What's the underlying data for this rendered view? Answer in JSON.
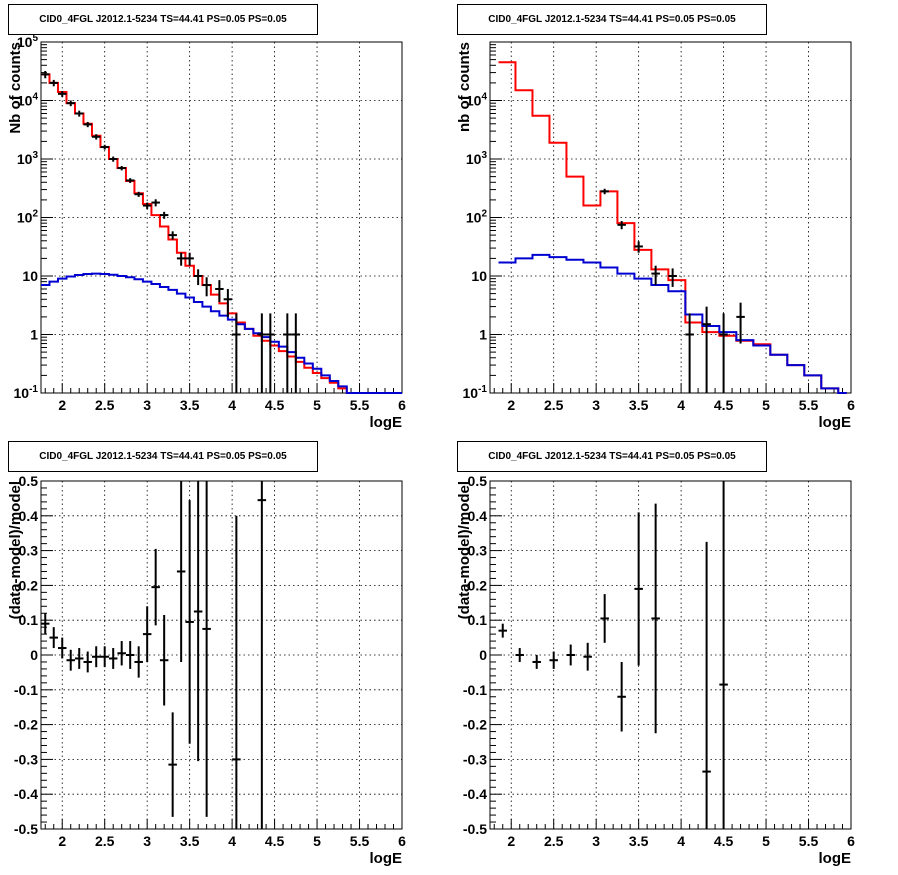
{
  "chart_data": [
    {
      "type": "line",
      "title": "CID0_4FGL J2012.1-5234 TS=44.41 PS=0.05 PS=0.05",
      "xlabel": "logE",
      "ylabel": "Nb of counts",
      "xlim": [
        1.75,
        6.0
      ],
      "ylim": [
        0.1,
        100000
      ],
      "yscale": "log",
      "grid": true,
      "x_ticks": [
        "2",
        "2.5",
        "3",
        "3.5",
        "4",
        "4.5",
        "5",
        "5.5",
        "6"
      ],
      "y_ticks": [
        {
          "base": "10",
          "exp": "-1",
          "value": 0.1
        },
        {
          "base": "1",
          "exp": "",
          "value": 1
        },
        {
          "base": "10",
          "exp": "",
          "value": 10
        },
        {
          "base": "10",
          "exp": "2",
          "value": 100
        },
        {
          "base": "10",
          "exp": "3",
          "value": 1000
        },
        {
          "base": "10",
          "exp": "4",
          "value": 10000
        },
        {
          "base": "10",
          "exp": "5",
          "value": 100000
        }
      ],
      "bin_edges": [
        1.75,
        1.85,
        1.95,
        2.05,
        2.15,
        2.25,
        2.35,
        2.45,
        2.55,
        2.65,
        2.75,
        2.85,
        2.95,
        3.05,
        3.15,
        3.25,
        3.35,
        3.45,
        3.55,
        3.65,
        3.75,
        3.85,
        3.95,
        4.05,
        4.15,
        4.25,
        4.35,
        4.45,
        4.55,
        4.65,
        4.75,
        4.85,
        4.95,
        5.05,
        5.15,
        5.25,
        5.35,
        5.45,
        5.55,
        5.65,
        5.75,
        5.85,
        5.95,
        6.0
      ],
      "series": [
        {
          "name": "",
          "color": "#ff0000",
          "values": [
            28000,
            20000,
            14000,
            9000,
            6000,
            4000,
            2500,
            1600,
            1000,
            700,
            420,
            260,
            170,
            110,
            70,
            42,
            25,
            15,
            10,
            7,
            4.8,
            3.4,
            2.3,
            1.6,
            1.25,
            0.95,
            0.78,
            0.65,
            0.52,
            0.42,
            0.34,
            0.27,
            0.22,
            0.18,
            0.15,
            0.12,
            0.1,
            0.1,
            0.1,
            0.1,
            0.1,
            0.1,
            0.1
          ]
        },
        {
          "name": "",
          "color": "#0000d0",
          "values": [
            7,
            8,
            9,
            9.8,
            10.4,
            10.8,
            11,
            10.8,
            10.5,
            10,
            9.5,
            8.8,
            8,
            7.3,
            6.5,
            5.8,
            5,
            4.3,
            3.6,
            3,
            2.5,
            2.1,
            1.8,
            1.5,
            1.25,
            1.05,
            0.9,
            0.75,
            0.62,
            0.5,
            0.4,
            0.32,
            0.26,
            0.2,
            0.16,
            0.13,
            0.1,
            0.1,
            0.1,
            0.1,
            0.1,
            0.1,
            0.1
          ]
        }
      ],
      "points": [
        {
          "x": 1.8,
          "y": 28000,
          "lo": 24000,
          "hi": 32000
        },
        {
          "x": 1.9,
          "y": 20000,
          "lo": 17500,
          "hi": 22500
        },
        {
          "x": 2.0,
          "y": 13000,
          "lo": 11500,
          "hi": 14500
        },
        {
          "x": 2.1,
          "y": 9000,
          "lo": 8000,
          "hi": 10000
        },
        {
          "x": 2.2,
          "y": 6000,
          "lo": 5300,
          "hi": 6700
        },
        {
          "x": 2.3,
          "y": 3900,
          "lo": 3500,
          "hi": 4300
        },
        {
          "x": 2.4,
          "y": 2400,
          "lo": 2150,
          "hi": 2650
        },
        {
          "x": 2.5,
          "y": 1600,
          "lo": 1450,
          "hi": 1750
        },
        {
          "x": 2.6,
          "y": 1000,
          "lo": 900,
          "hi": 1100
        },
        {
          "x": 2.7,
          "y": 700,
          "lo": 640,
          "hi": 760
        },
        {
          "x": 2.8,
          "y": 430,
          "lo": 390,
          "hi": 470
        },
        {
          "x": 2.9,
          "y": 250,
          "lo": 225,
          "hi": 275
        },
        {
          "x": 3.0,
          "y": 160,
          "lo": 140,
          "hi": 180
        },
        {
          "x": 3.1,
          "y": 180,
          "lo": 155,
          "hi": 205
        },
        {
          "x": 3.2,
          "y": 110,
          "lo": 95,
          "hi": 125
        },
        {
          "x": 3.3,
          "y": 50,
          "lo": 42,
          "hi": 58
        },
        {
          "x": 3.4,
          "y": 20,
          "lo": 15,
          "hi": 25
        },
        {
          "x": 3.5,
          "y": 20,
          "lo": 15,
          "hi": 25
        },
        {
          "x": 3.6,
          "y": 10,
          "lo": 7,
          "hi": 13
        },
        {
          "x": 3.7,
          "y": 7,
          "lo": 4.5,
          "hi": 9.5
        },
        {
          "x": 3.85,
          "y": 6,
          "lo": 3.6,
          "hi": 8.5
        },
        {
          "x": 3.95,
          "y": 4,
          "lo": 2,
          "hi": 6
        },
        {
          "x": 4.05,
          "y": 1,
          "lo": 0.1,
          "hi": 2.3
        },
        {
          "x": 4.35,
          "y": 1,
          "lo": 0.1,
          "hi": 2.3
        },
        {
          "x": 4.45,
          "y": 1,
          "lo": 0.1,
          "hi": 2.3
        },
        {
          "x": 4.65,
          "y": 1,
          "lo": 0.1,
          "hi": 2.3
        },
        {
          "x": 4.75,
          "y": 1,
          "lo": 0.1,
          "hi": 2.3
        }
      ]
    },
    {
      "type": "line",
      "title": "CID0_4FGL J2012.1-5234 TS=44.41 PS=0.05 PS=0.05",
      "xlabel": "logE",
      "ylabel": "nb of counts",
      "xlim": [
        1.75,
        6.0
      ],
      "ylim": [
        0.1,
        100000
      ],
      "yscale": "log",
      "grid": true,
      "x_ticks": [
        "2",
        "2.5",
        "3",
        "3.5",
        "4",
        "4.5",
        "5",
        "5.5",
        "6"
      ],
      "y_ticks": [
        {
          "base": "10",
          "exp": "-1",
          "value": 0.1
        },
        {
          "base": "1",
          "exp": "",
          "value": 1
        },
        {
          "base": "10",
          "exp": "",
          "value": 10
        },
        {
          "base": "10",
          "exp": "2",
          "value": 100
        },
        {
          "base": "10",
          "exp": "3",
          "value": 1000
        },
        {
          "base": "10",
          "exp": "4",
          "value": 10000
        }
      ],
      "bin_edges": [
        1.85,
        2.05,
        2.25,
        2.45,
        2.65,
        2.85,
        3.05,
        3.25,
        3.45,
        3.65,
        3.85,
        4.05,
        4.25,
        4.45,
        4.65,
        4.85,
        5.05,
        5.25,
        5.45,
        5.65,
        5.85,
        5.95
      ],
      "series": [
        {
          "name": "",
          "color": "#ff0000",
          "values": [
            45000,
            15000,
            5500,
            1900,
            500,
            160,
            280,
            80,
            28,
            13,
            8.5,
            1.6,
            1.1,
            0.95,
            0.78,
            0.68,
            0.45,
            0.3,
            0.2,
            0.12,
            0.1
          ]
        },
        {
          "name": "",
          "color": "#0000d0",
          "values": [
            17,
            20,
            23,
            21,
            19,
            17,
            14,
            11,
            9,
            7,
            5.5,
            2.2,
            1.4,
            1.1,
            0.8,
            0.65,
            0.45,
            0.3,
            0.2,
            0.12,
            0.1
          ]
        }
      ],
      "points": [
        {
          "x": 3.1,
          "y": 280,
          "lo": 250,
          "hi": 310
        },
        {
          "x": 3.3,
          "y": 75,
          "lo": 63,
          "hi": 87
        },
        {
          "x": 3.5,
          "y": 32,
          "lo": 25,
          "hi": 39
        },
        {
          "x": 3.7,
          "y": 11,
          "lo": 7,
          "hi": 15
        },
        {
          "x": 3.9,
          "y": 10,
          "lo": 6.5,
          "hi": 13.5
        },
        {
          "x": 4.1,
          "y": 1,
          "lo": 0.1,
          "hi": 2.3
        },
        {
          "x": 4.3,
          "y": 1.5,
          "lo": 0.1,
          "hi": 3
        },
        {
          "x": 4.5,
          "y": 1,
          "lo": 0.1,
          "hi": 2.3
        },
        {
          "x": 4.7,
          "y": 2,
          "lo": 0.7,
          "hi": 3.5
        }
      ]
    },
    {
      "type": "scatter",
      "title": "CID0_4FGL J2012.1-5234 TS=44.41 PS=0.05 PS=0.05",
      "xlabel": "logE",
      "ylabel": "(data-model)/model",
      "xlim": [
        1.75,
        6.0
      ],
      "ylim": [
        -0.5,
        0.5
      ],
      "grid": true,
      "x_ticks": [
        "2",
        "2.5",
        "3",
        "3.5",
        "4",
        "4.5",
        "5",
        "5.5",
        "6"
      ],
      "y_ticks": [
        "-0.5",
        "-0.4",
        "-0.3",
        "-0.2",
        "-0.1",
        "0",
        "0.1",
        "0.2",
        "0.3",
        "0.4",
        "0.5"
      ],
      "points": [
        {
          "x": 1.8,
          "y": 0.09,
          "err": 0.03
        },
        {
          "x": 1.9,
          "y": 0.05,
          "err": 0.03
        },
        {
          "x": 2.0,
          "y": 0.02,
          "err": 0.03
        },
        {
          "x": 2.1,
          "y": -0.015,
          "err": 0.03
        },
        {
          "x": 2.2,
          "y": -0.01,
          "err": 0.03
        },
        {
          "x": 2.3,
          "y": -0.02,
          "err": 0.03
        },
        {
          "x": 2.4,
          "y": -0.005,
          "err": 0.03
        },
        {
          "x": 2.5,
          "y": -0.005,
          "err": 0.03
        },
        {
          "x": 2.6,
          "y": -0.01,
          "err": 0.03
        },
        {
          "x": 2.7,
          "y": 0.005,
          "err": 0.035
        },
        {
          "x": 2.8,
          "y": 0.0,
          "err": 0.04
        },
        {
          "x": 2.9,
          "y": -0.02,
          "err": 0.045
        },
        {
          "x": 3.0,
          "y": 0.06,
          "err": 0.08
        },
        {
          "x": 3.1,
          "y": 0.195,
          "err": 0.11
        },
        {
          "x": 3.2,
          "y": -0.015,
          "err": 0.13
        },
        {
          "x": 3.3,
          "y": -0.315,
          "err": 0.15
        },
        {
          "x": 3.4,
          "y": 0.24,
          "err": 0.26
        },
        {
          "x": 3.5,
          "y": 0.095,
          "err": 0.35
        },
        {
          "x": 3.6,
          "y": 0.125,
          "err": 0.43
        },
        {
          "x": 3.7,
          "y": 0.075,
          "err": 0.54
        },
        {
          "x": 4.05,
          "y": -0.3,
          "err": 0.7
        },
        {
          "x": 4.35,
          "y": 0.445,
          "err": 1.0
        }
      ]
    },
    {
      "type": "scatter",
      "title": "CID0_4FGL J2012.1-5234 TS=44.41 PS=0.05 PS=0.05",
      "xlabel": "logE",
      "ylabel": "(data-model)/model",
      "xlim": [
        1.75,
        6.0
      ],
      "ylim": [
        -0.5,
        0.5
      ],
      "grid": true,
      "x_ticks": [
        "2",
        "2.5",
        "3",
        "3.5",
        "4",
        "4.5",
        "5",
        "5.5",
        "6"
      ],
      "y_ticks": [
        "-0.5",
        "-0.4",
        "-0.3",
        "-0.2",
        "-0.1",
        "0",
        "0.1",
        "0.2",
        "0.3",
        "0.4",
        "0.5"
      ],
      "points": [
        {
          "x": 1.9,
          "y": 0.07,
          "err": 0.02
        },
        {
          "x": 2.1,
          "y": 0.0,
          "err": 0.02
        },
        {
          "x": 2.3,
          "y": -0.02,
          "err": 0.02
        },
        {
          "x": 2.5,
          "y": -0.015,
          "err": 0.025
        },
        {
          "x": 2.7,
          "y": 0.0,
          "err": 0.03
        },
        {
          "x": 2.9,
          "y": -0.005,
          "err": 0.04
        },
        {
          "x": 3.1,
          "y": 0.105,
          "err": 0.07
        },
        {
          "x": 3.3,
          "y": -0.12,
          "err": 0.1
        },
        {
          "x": 3.5,
          "y": 0.19,
          "err": 0.22
        },
        {
          "x": 3.7,
          "y": 0.105,
          "err": 0.33
        },
        {
          "x": 4.3,
          "y": -0.335,
          "err": 0.66
        },
        {
          "x": 4.5,
          "y": -0.085,
          "err": 0.7
        }
      ]
    }
  ]
}
